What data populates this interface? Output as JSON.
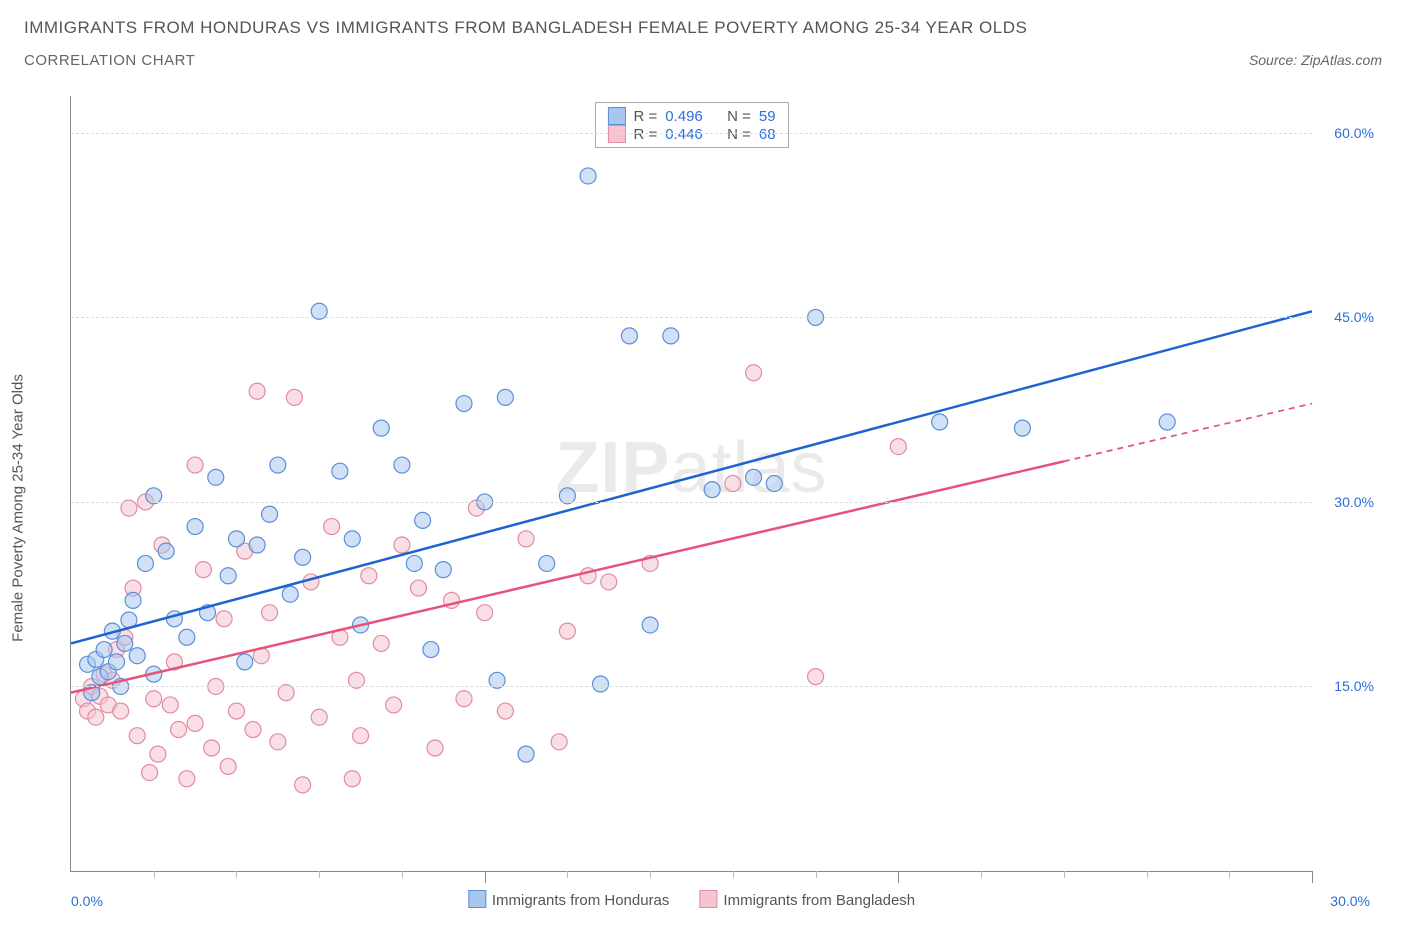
{
  "header": {
    "title": "IMMIGRANTS FROM HONDURAS VS IMMIGRANTS FROM BANGLADESH FEMALE POVERTY AMONG 25-34 YEAR OLDS",
    "subtitle": "CORRELATION CHART",
    "source": "Source: ZipAtlas.com"
  },
  "chart": {
    "type": "scatter",
    "ylabel": "Female Poverty Among 25-34 Year Olds",
    "watermark": "ZIPatlas",
    "xlim": [
      0,
      30
    ],
    "ylim": [
      0,
      63
    ],
    "y_ticks": [
      15,
      30,
      45,
      60
    ],
    "y_tick_labels": [
      "15.0%",
      "30.0%",
      "45.0%",
      "60.0%"
    ],
    "x_zero_label": "0.0%",
    "x_max_label": "30.0%",
    "x_major_ticks": [
      10,
      20,
      30
    ],
    "x_minor_step": 2,
    "background_color": "#ffffff",
    "grid_color": "#dddddd",
    "axis_color": "#888888",
    "tick_label_color": "#2b6fd8",
    "text_color": "#555555",
    "marker_radius": 8,
    "marker_opacity": 0.55,
    "line_width": 2.5,
    "series": [
      {
        "name": "Immigrants from Honduras",
        "fill_color": "#a9c6ef",
        "stroke_color": "#5b8fd6",
        "line_color": "#1e63d0",
        "R": "0.496",
        "N": "59",
        "trend": {
          "x1": 0,
          "y1": 18.5,
          "x2": 30,
          "y2": 45.5,
          "dash_from_x": null
        },
        "points": [
          [
            0.4,
            16.8
          ],
          [
            0.5,
            14.5
          ],
          [
            0.6,
            17.2
          ],
          [
            0.7,
            15.8
          ],
          [
            0.8,
            18.0
          ],
          [
            0.9,
            16.2
          ],
          [
            1.0,
            19.5
          ],
          [
            1.1,
            17.0
          ],
          [
            1.2,
            15.0
          ],
          [
            1.3,
            18.5
          ],
          [
            1.4,
            20.4
          ],
          [
            1.5,
            22.0
          ],
          [
            1.6,
            17.5
          ],
          [
            1.8,
            25.0
          ],
          [
            2.0,
            16.0
          ],
          [
            2.0,
            30.5
          ],
          [
            2.3,
            26.0
          ],
          [
            2.5,
            20.5
          ],
          [
            2.8,
            19.0
          ],
          [
            3.0,
            28.0
          ],
          [
            3.3,
            21.0
          ],
          [
            3.5,
            32.0
          ],
          [
            3.8,
            24.0
          ],
          [
            4.0,
            27.0
          ],
          [
            4.2,
            17.0
          ],
          [
            4.5,
            26.5
          ],
          [
            4.8,
            29.0
          ],
          [
            5.0,
            33.0
          ],
          [
            5.3,
            22.5
          ],
          [
            5.6,
            25.5
          ],
          [
            6.0,
            45.5
          ],
          [
            6.5,
            32.5
          ],
          [
            6.8,
            27.0
          ],
          [
            7.0,
            20.0
          ],
          [
            7.5,
            36.0
          ],
          [
            8.0,
            33.0
          ],
          [
            8.3,
            25.0
          ],
          [
            8.5,
            28.5
          ],
          [
            8.7,
            18.0
          ],
          [
            9.0,
            24.5
          ],
          [
            9.5,
            38.0
          ],
          [
            10.0,
            30.0
          ],
          [
            10.3,
            15.5
          ],
          [
            10.5,
            38.5
          ],
          [
            11.0,
            9.5
          ],
          [
            11.5,
            25.0
          ],
          [
            12.0,
            30.5
          ],
          [
            12.5,
            56.5
          ],
          [
            12.8,
            15.2
          ],
          [
            13.5,
            43.5
          ],
          [
            14.0,
            20.0
          ],
          [
            14.5,
            43.5
          ],
          [
            15.5,
            31.0
          ],
          [
            16.5,
            32.0
          ],
          [
            18.0,
            45.0
          ],
          [
            21.0,
            36.5
          ],
          [
            23.0,
            36.0
          ],
          [
            26.5,
            36.5
          ],
          [
            17.0,
            31.5
          ]
        ]
      },
      {
        "name": "Immigrants from Bangladesh",
        "fill_color": "#f4c4d0",
        "stroke_color": "#e28ba1",
        "line_color": "#e6537a",
        "R": "0.446",
        "N": "68",
        "trend": {
          "x1": 0,
          "y1": 14.5,
          "x2": 30,
          "y2": 38.0,
          "dash_from_x": 24
        },
        "points": [
          [
            0.3,
            14.0
          ],
          [
            0.4,
            13.0
          ],
          [
            0.5,
            15.0
          ],
          [
            0.6,
            12.5
          ],
          [
            0.7,
            14.2
          ],
          [
            0.8,
            16.0
          ],
          [
            0.9,
            13.5
          ],
          [
            1.0,
            15.5
          ],
          [
            1.1,
            18.0
          ],
          [
            1.2,
            13.0
          ],
          [
            1.3,
            19.0
          ],
          [
            1.4,
            29.5
          ],
          [
            1.5,
            23.0
          ],
          [
            1.6,
            11.0
          ],
          [
            1.8,
            30.0
          ],
          [
            1.9,
            8.0
          ],
          [
            2.0,
            14.0
          ],
          [
            2.1,
            9.5
          ],
          [
            2.2,
            26.5
          ],
          [
            2.4,
            13.5
          ],
          [
            2.5,
            17.0
          ],
          [
            2.6,
            11.5
          ],
          [
            2.8,
            7.5
          ],
          [
            3.0,
            33.0
          ],
          [
            3.0,
            12.0
          ],
          [
            3.2,
            24.5
          ],
          [
            3.4,
            10.0
          ],
          [
            3.5,
            15.0
          ],
          [
            3.7,
            20.5
          ],
          [
            3.8,
            8.5
          ],
          [
            4.0,
            13.0
          ],
          [
            4.2,
            26.0
          ],
          [
            4.4,
            11.5
          ],
          [
            4.5,
            39.0
          ],
          [
            4.6,
            17.5
          ],
          [
            4.8,
            21.0
          ],
          [
            5.0,
            10.5
          ],
          [
            5.2,
            14.5
          ],
          [
            5.4,
            38.5
          ],
          [
            5.6,
            7.0
          ],
          [
            5.8,
            23.5
          ],
          [
            6.0,
            12.5
          ],
          [
            6.3,
            28.0
          ],
          [
            6.5,
            19.0
          ],
          [
            6.8,
            7.5
          ],
          [
            7.0,
            11.0
          ],
          [
            7.2,
            24.0
          ],
          [
            7.5,
            18.5
          ],
          [
            7.8,
            13.5
          ],
          [
            8.0,
            26.5
          ],
          [
            8.4,
            23.0
          ],
          [
            8.8,
            10.0
          ],
          [
            9.2,
            22.0
          ],
          [
            9.5,
            14.0
          ],
          [
            10.0,
            21.0
          ],
          [
            10.5,
            13.0
          ],
          [
            11.0,
            27.0
          ],
          [
            12.0,
            19.5
          ],
          [
            13.0,
            23.5
          ],
          [
            14.0,
            25.0
          ],
          [
            16.0,
            31.5
          ],
          [
            16.5,
            40.5
          ],
          [
            18.0,
            15.8
          ],
          [
            20.0,
            34.5
          ],
          [
            11.8,
            10.5
          ],
          [
            12.5,
            24.0
          ],
          [
            9.8,
            29.5
          ],
          [
            6.9,
            15.5
          ]
        ]
      }
    ]
  }
}
